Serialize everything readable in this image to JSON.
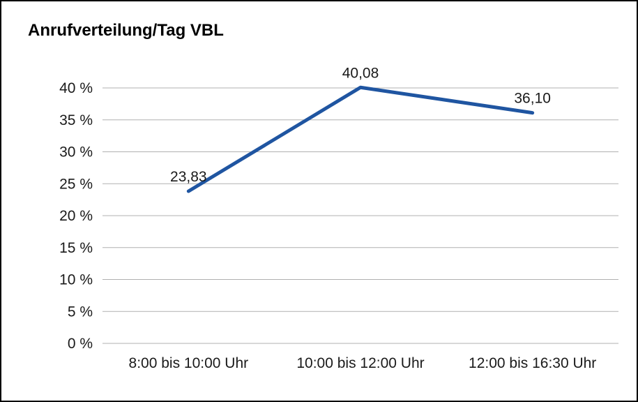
{
  "frame": {
    "background": "#ffffff",
    "border_color": "#000000"
  },
  "chart_data": {
    "type": "line",
    "title": "Anrufverteilung/Tag VBL",
    "categories": [
      "8:00 bis 10:00 Uhr",
      "10:00 bis 12:00 Uhr",
      "12:00 bis 16:30 Uhr"
    ],
    "values": [
      23.83,
      40.08,
      36.1
    ],
    "point_labels": [
      "23,83",
      "40,08",
      "36,10"
    ],
    "ylim": [
      0,
      40
    ],
    "ytick_step": 5,
    "ytick_suffix": " %",
    "ytick_labels": [
      "0 %",
      "5 %",
      "10 %",
      "15 %",
      "20 %",
      "25 %",
      "30 %",
      "35 %",
      "40 %"
    ],
    "grid": true,
    "gridline_color": "#b0b0b0",
    "line_color": "#1f55a1",
    "line_width": 5,
    "legend": "none",
    "xlabel": "",
    "ylabel": ""
  }
}
